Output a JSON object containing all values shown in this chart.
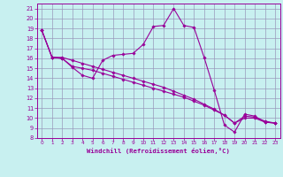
{
  "xlabel": "Windchill (Refroidissement éolien,°C)",
  "bg_color": "#c8f0f0",
  "line_color": "#990099",
  "grid_color": "#9999bb",
  "xlim": [
    -0.5,
    23.5
  ],
  "ylim": [
    8,
    21.5
  ],
  "yticks": [
    8,
    9,
    10,
    11,
    12,
    13,
    14,
    15,
    16,
    17,
    18,
    19,
    20,
    21
  ],
  "xticks": [
    0,
    1,
    2,
    3,
    4,
    5,
    6,
    7,
    8,
    9,
    10,
    11,
    12,
    13,
    14,
    15,
    16,
    17,
    18,
    19,
    20,
    21,
    22,
    23
  ],
  "curve_x": [
    0,
    1,
    2,
    3,
    4,
    5,
    6,
    7,
    8,
    9,
    10,
    11,
    12,
    13,
    14,
    15,
    16,
    17,
    18,
    19,
    20,
    21,
    22,
    23
  ],
  "curve_y": [
    18.8,
    16.1,
    16.0,
    15.1,
    14.3,
    14.0,
    15.8,
    16.3,
    16.4,
    16.5,
    17.4,
    19.2,
    19.3,
    21.0,
    19.3,
    19.1,
    16.1,
    12.8,
    9.3,
    8.6,
    10.4,
    10.2,
    9.6,
    9.5
  ],
  "diag1_x": [
    0,
    1,
    2,
    3,
    4,
    5,
    6,
    7,
    8,
    9,
    10,
    11,
    12,
    13,
    14,
    15,
    16,
    17,
    18,
    19,
    20,
    21,
    22,
    23
  ],
  "diag1_y": [
    18.8,
    16.1,
    16.0,
    15.2,
    15.0,
    14.8,
    14.5,
    14.2,
    13.9,
    13.6,
    13.3,
    13.0,
    12.7,
    12.4,
    12.1,
    11.7,
    11.3,
    10.8,
    10.3,
    9.5,
    10.0,
    10.0,
    9.6,
    9.5
  ],
  "diag2_x": [
    0,
    1,
    2,
    3,
    4,
    5,
    6,
    7,
    8,
    9,
    10,
    11,
    12,
    13,
    14,
    15,
    16,
    17,
    18,
    19,
    20,
    21,
    22,
    23
  ],
  "diag2_y": [
    18.8,
    16.1,
    16.1,
    15.8,
    15.5,
    15.2,
    14.9,
    14.6,
    14.3,
    14.0,
    13.7,
    13.4,
    13.1,
    12.7,
    12.3,
    11.9,
    11.4,
    10.9,
    10.3,
    9.5,
    10.2,
    10.1,
    9.7,
    9.5
  ]
}
